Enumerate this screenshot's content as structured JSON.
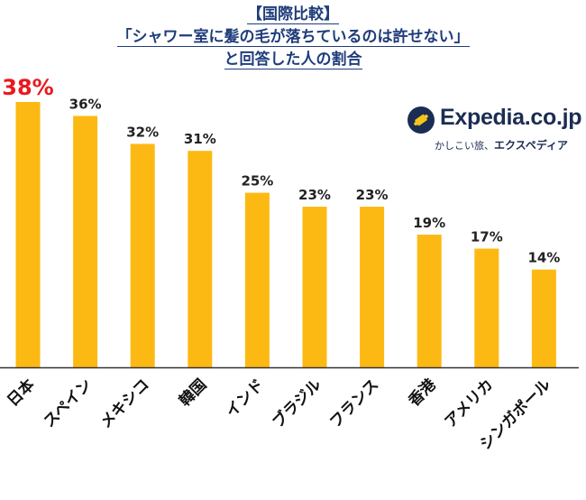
{
  "title": {
    "line1": "【国際比較】",
    "line2": "「シャワー室に髪の毛が落ちているのは許せない」",
    "line3": "と回答した人の割合"
  },
  "logo": {
    "name": "Expedia.co.jp",
    "tagline_prefix": "かしこい旅、",
    "tagline_brand": "エクスペディア"
  },
  "colors": {
    "bar": "#fdb913",
    "highlight_label": "#e8191f",
    "label": "#222222",
    "title": "#1f3d7a",
    "axis": "#333333"
  },
  "chart_data": {
    "type": "bar",
    "categories": [
      "日本",
      "スペイン",
      "メキシコ",
      "韓国",
      "インド",
      "ブラジル",
      "フランス",
      "香港",
      "アメリカ",
      "シンガポール"
    ],
    "values": [
      38,
      36,
      32,
      31,
      25,
      23,
      23,
      19,
      17,
      14
    ],
    "value_labels": [
      "38%",
      "36%",
      "32%",
      "31%",
      "25%",
      "23%",
      "23%",
      "19%",
      "17%",
      "14%"
    ],
    "ylim": [
      0,
      38
    ],
    "highlight_index": 0,
    "grid": false,
    "legend": "none"
  }
}
